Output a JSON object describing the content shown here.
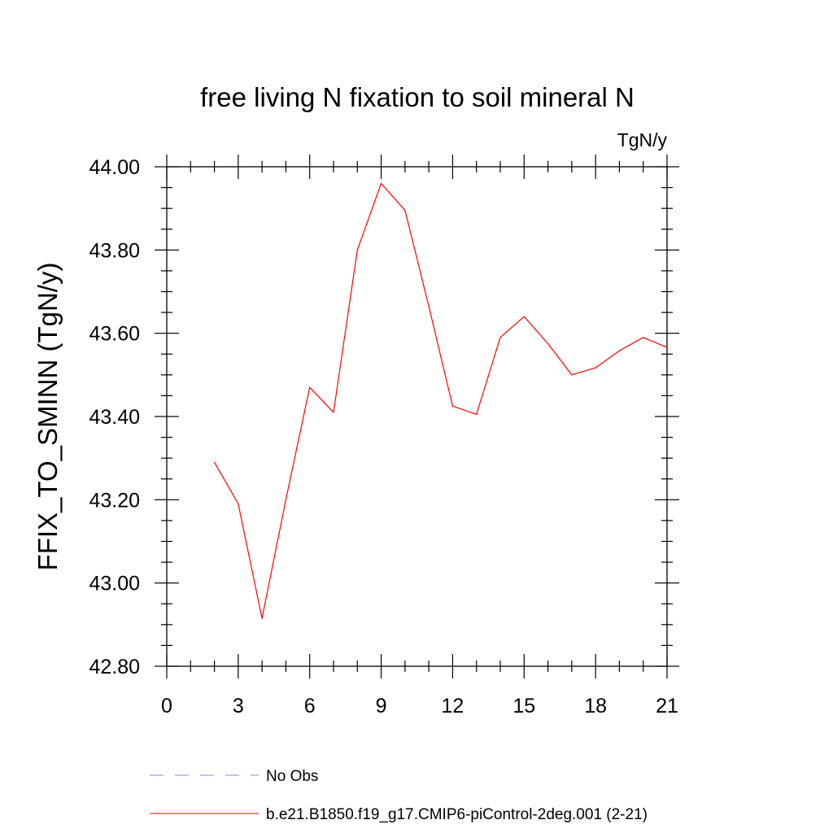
{
  "chart_data": {
    "type": "line",
    "title": "free living N fixation to soil mineral N",
    "units_label": "TgN/y",
    "xlabel": "",
    "ylabel": "FFIX_TO_SMINN  (TgN/y)",
    "xlim": [
      0,
      21
    ],
    "ylim": [
      42.8,
      44.0
    ],
    "x_ticks": [
      0,
      3,
      6,
      9,
      12,
      15,
      18,
      21
    ],
    "y_ticks": [
      42.8,
      43.0,
      43.2,
      43.4,
      43.6,
      43.8,
      44.0
    ],
    "y_tick_labels": [
      "42.80",
      "43.00",
      "43.20",
      "43.40",
      "43.60",
      "43.80",
      "44.00"
    ],
    "grid": false,
    "series": [
      {
        "name": "b.e21.B1850.f19_g17.CMIP6-piControl-2deg.001 (2-21)",
        "color": "#ff0000",
        "style": "solid",
        "x": [
          2,
          3,
          4,
          5,
          6,
          7,
          8,
          9,
          10,
          11,
          12,
          13,
          14,
          15,
          16,
          17,
          18,
          19,
          20,
          21
        ],
        "y": [
          43.29,
          43.19,
          42.915,
          43.2,
          43.47,
          43.41,
          43.8,
          43.96,
          43.895,
          43.665,
          43.425,
          43.405,
          43.59,
          43.64,
          43.575,
          43.5,
          43.517,
          43.558,
          43.59,
          43.566
        ]
      }
    ],
    "legend": {
      "placement": "bottom-left",
      "entries": [
        {
          "label": "No Obs",
          "color": "#8888cc",
          "style": "dashed"
        },
        {
          "label": "b.e21.B1850.f19_g17.CMIP6-piControl-2deg.001 (2-21)",
          "color": "#ff0000",
          "style": "solid"
        }
      ]
    }
  }
}
